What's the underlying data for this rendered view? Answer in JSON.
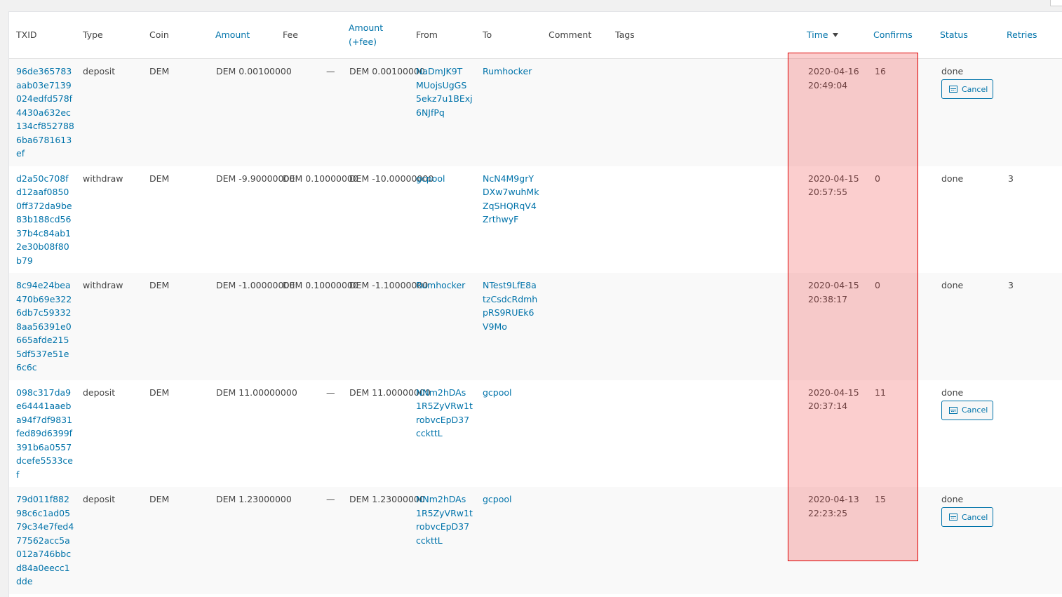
{
  "columns": {
    "txid": "TXID",
    "type": "Type",
    "coin": "Coin",
    "amount": "Amount",
    "fee": "Fee",
    "amount_fee": "Amount\n(+fee)",
    "from": "From",
    "to": "To",
    "comment": "Comment",
    "tags": "Tags",
    "time": "Time",
    "confirms": "Confirms",
    "status": "Status",
    "retries": "Retries"
  },
  "cancel_label": "Cancel",
  "highlight_color": "#f03c3c",
  "rows": [
    {
      "txid": "96de365783\naab03e7139\n024edfd578f\n4430a632ec\n134cf852788\n6ba6781613\nef",
      "type": "deposit",
      "coin": "DEM",
      "amount": "DEM 0.00100000",
      "fee": "—",
      "amount_fee": "DEM 0.00100000",
      "from": "NaDmJK9T\nMUojsUgGS\n5ekz7u1BExj\n6NJfPq",
      "to": "Rumhocker",
      "time": "2020-04-16\n20:49:04",
      "confirms": "16",
      "status": "done",
      "retries": ""
    },
    {
      "txid": "d2a50c708f\nd12aaf0850\n0ff372da9be\n83b188cd56\n37b4c84ab1\n2e30b08f80\nb79",
      "type": "withdraw",
      "coin": "DEM",
      "amount": "DEM -9.90000000",
      "fee": "DEM 0.10000000",
      "amount_fee": "DEM -10.00000000",
      "from": "gcpool",
      "to": "NcN4M9grY\nDXw7wuhMk\nZqSHQRqV4\nZrthwyF",
      "time": "2020-04-15\n20:57:55",
      "confirms": "0",
      "status": "done",
      "retries": "3"
    },
    {
      "txid": "8c94e24bea\n470b69e322\n6db7c59332\n8aa56391e0\n665afde215\n5df537e51e\n6c6c",
      "type": "withdraw",
      "coin": "DEM",
      "amount": "DEM -1.00000000",
      "fee": "DEM 0.10000000",
      "amount_fee": "DEM -1.10000000",
      "from": "Rumhocker",
      "to": "NTest9LfE8a\ntzCsdcRdmh\npRS9RUEk6\nV9Mo",
      "time": "2020-04-15\n20:38:17",
      "confirms": "0",
      "status": "done",
      "retries": "3"
    },
    {
      "txid": "098c317da9\ne64441aaeb\na94f7df9831\nfed89d6399f\n391b6a0557\ndcefe5533ce\nf",
      "type": "deposit",
      "coin": "DEM",
      "amount": "DEM 11.00000000",
      "fee": "—",
      "amount_fee": "DEM 11.00000000",
      "from": "NNm2hDAs\n1R5ZyVRw1t\nrobvcEpD37\ncckttL",
      "to": "gcpool",
      "time": "2020-04-15\n20:37:14",
      "confirms": "11",
      "status": "done",
      "retries": ""
    },
    {
      "txid": "79d011f882\n98c6c1ad05\n79c34e7fed4\n77562acc5a\n012a746bbc\nd84a0eecc1\ndde",
      "type": "deposit",
      "coin": "DEM",
      "amount": "DEM 1.23000000",
      "fee": "—",
      "amount_fee": "DEM 1.23000000",
      "from": "NNm2hDAs\n1R5ZyVRw1t\nrobvcEpD37\ncckttL",
      "to": "gcpool",
      "time": "2020-04-13\n22:23:25",
      "confirms": "15",
      "status": "done",
      "retries": ""
    }
  ]
}
